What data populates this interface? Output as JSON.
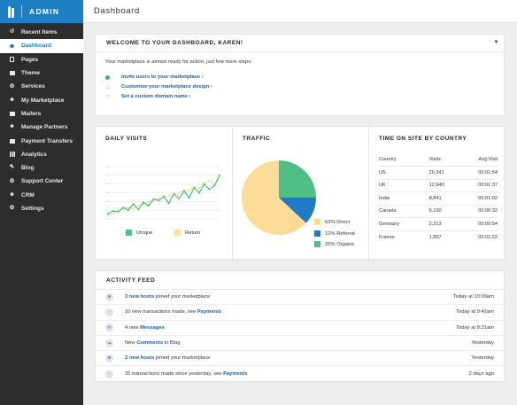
{
  "brand": {
    "name": "ADMIN",
    "color": "#1b7fc1"
  },
  "sidebar": {
    "items": [
      {
        "label": "Recent Items",
        "icon": "history-icon",
        "active": false
      },
      {
        "label": "Dashboard",
        "icon": "dashboard-icon",
        "active": true
      },
      {
        "label": "Pages",
        "icon": "page-icon",
        "active": false
      },
      {
        "label": "Theme",
        "icon": "theme-icon",
        "active": false
      },
      {
        "label": "Services",
        "icon": "services-icon",
        "active": false
      },
      {
        "label": "My Marketplace",
        "icon": "marketplace-icon",
        "active": false
      },
      {
        "label": "Mailers",
        "icon": "mail-icon",
        "active": false
      },
      {
        "label": "Manage Partners",
        "icon": "partners-icon",
        "active": false
      },
      {
        "label": "Payment Transfers",
        "icon": "payment-icon",
        "active": false
      },
      {
        "label": "Analytics",
        "icon": "analytics-icon",
        "active": false
      },
      {
        "label": "Blog",
        "icon": "pencil-icon",
        "active": false
      },
      {
        "label": "Support Center",
        "icon": "support-icon",
        "active": false
      },
      {
        "label": "CRM",
        "icon": "crm-icon",
        "active": false
      },
      {
        "label": "Settings",
        "icon": "gear-icon",
        "active": false
      }
    ]
  },
  "header": {
    "title": "Dashboard"
  },
  "welcome": {
    "title": "WELCOME TO YOUR DASHBOARD, KAREN!",
    "intro": "Your marketplace is almost ready for action, just  few more steps:",
    "steps": [
      {
        "label": "Invite users to your marketplace ›",
        "done": true
      },
      {
        "label": "Customize your marketplace design ›",
        "done": false
      },
      {
        "label": "Set a custom domain name ›",
        "done": false
      }
    ]
  },
  "daily_visits": {
    "title": "DAILY VISITS",
    "legend": [
      "Unique",
      "Return"
    ]
  },
  "traffic": {
    "title": "TRAFFIC",
    "legend": [
      "63% Direct",
      "12% Referral",
      "25% Organic"
    ]
  },
  "time_on_site": {
    "title": "TIME ON SITE BY COUNTRY",
    "headers": [
      "Country",
      "Visits",
      "Avg Visit"
    ],
    "rows": [
      [
        "US",
        "20,341",
        "00:01:54"
      ],
      [
        "UK",
        "12,940",
        "00:01:37"
      ],
      [
        "India",
        "8,841",
        "00:01:02"
      ],
      [
        "Canada",
        "6,100",
        "00:00:32"
      ],
      [
        "Germany",
        "2,213",
        "00:00:54"
      ],
      [
        "France",
        "1,807",
        "00:01:22"
      ]
    ]
  },
  "activity": {
    "title": "ACTIVITY FEED",
    "items": [
      {
        "icon": "users-icon",
        "link": "3 new hosts",
        "pre": "",
        "post": " joined your marketplace",
        "time": "Today at 10:00am"
      },
      {
        "icon": "transaction-icon",
        "pre": "10 new transactions made, see ",
        "link": "Payments",
        "post": "",
        "time": "Today at 9:42am"
      },
      {
        "icon": "message-icon",
        "pre": "4 new ",
        "link": "Messages",
        "post": "",
        "time": "Today at 8:31am"
      },
      {
        "icon": "comment-icon",
        "pre": "New ",
        "link": "Comments",
        "post": " in Blog",
        "time": "Yesterday"
      },
      {
        "icon": "users-icon",
        "link": "2 new hosts",
        "pre": "",
        "post": " joined your marketplace",
        "time": "Yesterday"
      },
      {
        "icon": "transaction-icon",
        "pre": "35 transactions made since yesterday, see ",
        "link": "Payments",
        "post": "",
        "time": "2 days ago"
      }
    ]
  },
  "chart_data": [
    {
      "type": "line",
      "title": "DAILY VISITS",
      "x": [
        1,
        2,
        3,
        4,
        5,
        6,
        7,
        8,
        9,
        10,
        11,
        12,
        13,
        14,
        15,
        16,
        17,
        18,
        19,
        20,
        21,
        22,
        23
      ],
      "ylim": [
        0,
        6
      ],
      "series": [
        {
          "name": "Unique",
          "color": "#2bb673",
          "values": [
            0.6,
            0.9,
            0.8,
            1.3,
            1.0,
            1.7,
            1.1,
            1.9,
            1.5,
            2.3,
            2.1,
            2.6,
            1.8,
            2.9,
            2.3,
            3.2,
            2.4,
            3.6,
            3.0,
            4.0,
            3.4,
            3.8,
            5.0
          ]
        },
        {
          "name": "Return",
          "color": "#f7dc8f",
          "values": [
            0.4,
            0.6,
            1.0,
            1.1,
            1.3,
            1.2,
            1.6,
            1.7,
            2.0,
            2.0,
            2.4,
            2.3,
            2.7,
            2.6,
            3.0,
            3.3,
            3.2,
            3.7,
            3.5,
            4.1,
            4.4,
            3.9,
            4.6
          ]
        }
      ],
      "grid": true
    },
    {
      "type": "pie",
      "title": "TRAFFIC",
      "labels": [
        "Direct",
        "Referral",
        "Organic"
      ],
      "values": [
        63,
        12,
        25
      ],
      "colors": [
        "#fcdc97",
        "#1e7bc4",
        "#4fbf85"
      ]
    }
  ]
}
